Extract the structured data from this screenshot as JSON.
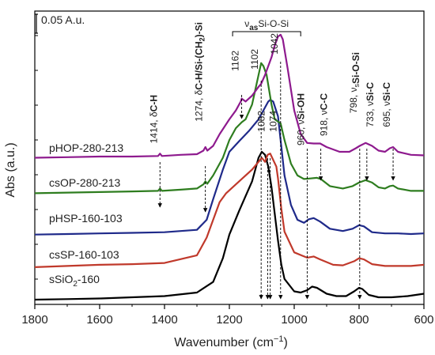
{
  "chart_data": {
    "type": "line",
    "xlabel": "Wavenumber (cm",
    "xlabel_sup": "−1",
    "xlabel_end": ")",
    "ylabel": "Abs (a.u.)",
    "xlim": [
      1800,
      600
    ],
    "x_reversed": true,
    "x_ticks": [
      1800,
      1600,
      1400,
      1200,
      1000,
      800,
      600
    ],
    "scale_bar_label": "0.05 A.u.",
    "series": [
      {
        "name": "sSiO",
        "name_sub": "2",
        "name_end": "-160",
        "color": "#000000",
        "offset": 0.0,
        "points": [
          [
            1800,
            0.0
          ],
          [
            1700,
            0.001
          ],
          [
            1600,
            0.002
          ],
          [
            1500,
            0.004
          ],
          [
            1400,
            0.006
          ],
          [
            1300,
            0.012
          ],
          [
            1250,
            0.03
          ],
          [
            1220,
            0.07
          ],
          [
            1200,
            0.11
          ],
          [
            1170,
            0.15
          ],
          [
            1150,
            0.175
          ],
          [
            1130,
            0.2
          ],
          [
            1110,
            0.24
          ],
          [
            1100,
            0.25
          ],
          [
            1090,
            0.245
          ],
          [
            1080,
            0.225
          ],
          [
            1070,
            0.19
          ],
          [
            1060,
            0.145
          ],
          [
            1050,
            0.1
          ],
          [
            1040,
            0.06
          ],
          [
            1030,
            0.035
          ],
          [
            1000,
            0.014
          ],
          [
            980,
            0.012
          ],
          [
            960,
            0.016
          ],
          [
            945,
            0.022
          ],
          [
            930,
            0.02
          ],
          [
            900,
            0.01
          ],
          [
            870,
            0.006
          ],
          [
            840,
            0.006
          ],
          [
            815,
            0.014
          ],
          [
            800,
            0.02
          ],
          [
            790,
            0.018
          ],
          [
            770,
            0.008
          ],
          [
            740,
            0.004
          ],
          [
            700,
            0.004
          ],
          [
            650,
            0.006
          ],
          [
            600,
            0.01
          ]
        ]
      },
      {
        "name": "csSP-160-103",
        "color": "#c0392b",
        "offset": 0.055,
        "points": [
          [
            1800,
            0.0
          ],
          [
            1700,
            0.002
          ],
          [
            1600,
            0.004
          ],
          [
            1500,
            0.005
          ],
          [
            1400,
            0.007
          ],
          [
            1300,
            0.02
          ],
          [
            1270,
            0.05
          ],
          [
            1250,
            0.08
          ],
          [
            1230,
            0.11
          ],
          [
            1210,
            0.125
          ],
          [
            1190,
            0.135
          ],
          [
            1160,
            0.15
          ],
          [
            1130,
            0.165
          ],
          [
            1110,
            0.178
          ],
          [
            1100,
            0.185
          ],
          [
            1090,
            0.178
          ],
          [
            1082,
            0.19
          ],
          [
            1074,
            0.192
          ],
          [
            1068,
            0.185
          ],
          [
            1055,
            0.17
          ],
          [
            1050,
            0.15
          ],
          [
            1040,
            0.1
          ],
          [
            1030,
            0.06
          ],
          [
            1000,
            0.025
          ],
          [
            960,
            0.016
          ],
          [
            940,
            0.018
          ],
          [
            920,
            0.013
          ],
          [
            880,
            0.004
          ],
          [
            850,
            0.003
          ],
          [
            815,
            0.01
          ],
          [
            800,
            0.015
          ],
          [
            785,
            0.013
          ],
          [
            760,
            0.005
          ],
          [
            720,
            0.002
          ],
          [
            680,
            0.002
          ],
          [
            640,
            0.002
          ],
          [
            600,
            0.004
          ]
        ]
      },
      {
        "name": "pHSP-160-103",
        "color": "#1f2a8a",
        "offset": 0.11,
        "points": [
          [
            1800,
            0.0
          ],
          [
            1700,
            0.001
          ],
          [
            1600,
            0.002
          ],
          [
            1500,
            0.003
          ],
          [
            1400,
            0.004
          ],
          [
            1300,
            0.008
          ],
          [
            1270,
            0.025
          ],
          [
            1250,
            0.06
          ],
          [
            1220,
            0.11
          ],
          [
            1200,
            0.14
          ],
          [
            1170,
            0.158
          ],
          [
            1140,
            0.175
          ],
          [
            1110,
            0.195
          ],
          [
            1090,
            0.215
          ],
          [
            1080,
            0.225
          ],
          [
            1074,
            0.228
          ],
          [
            1065,
            0.225
          ],
          [
            1050,
            0.2
          ],
          [
            1040,
            0.15
          ],
          [
            1030,
            0.1
          ],
          [
            1010,
            0.05
          ],
          [
            990,
            0.025
          ],
          [
            970,
            0.02
          ],
          [
            955,
            0.026
          ],
          [
            940,
            0.028
          ],
          [
            920,
            0.022
          ],
          [
            890,
            0.01
          ],
          [
            850,
            0.006
          ],
          [
            820,
            0.01
          ],
          [
            800,
            0.016
          ],
          [
            785,
            0.014
          ],
          [
            760,
            0.004
          ],
          [
            720,
            0.002
          ],
          [
            680,
            0.002
          ],
          [
            640,
            0.001
          ],
          [
            600,
            0.002
          ]
        ]
      },
      {
        "name": "csOP-280-213",
        "color": "#2e7d1f",
        "offset": 0.18,
        "points": [
          [
            1800,
            0.0
          ],
          [
            1700,
            0.001
          ],
          [
            1600,
            0.002
          ],
          [
            1500,
            0.003
          ],
          [
            1420,
            0.004
          ],
          [
            1414,
            0.008
          ],
          [
            1408,
            0.004
          ],
          [
            1350,
            0.006
          ],
          [
            1300,
            0.008
          ],
          [
            1280,
            0.015
          ],
          [
            1274,
            0.02
          ],
          [
            1268,
            0.016
          ],
          [
            1250,
            0.03
          ],
          [
            1220,
            0.06
          ],
          [
            1200,
            0.09
          ],
          [
            1180,
            0.11
          ],
          [
            1162,
            0.12
          ],
          [
            1150,
            0.125
          ],
          [
            1130,
            0.15
          ],
          [
            1110,
            0.2
          ],
          [
            1102,
            0.22
          ],
          [
            1095,
            0.215
          ],
          [
            1085,
            0.2
          ],
          [
            1070,
            0.15
          ],
          [
            1060,
            0.125
          ],
          [
            1042,
            0.118
          ],
          [
            1030,
            0.09
          ],
          [
            1010,
            0.05
          ],
          [
            990,
            0.03
          ],
          [
            970,
            0.024
          ],
          [
            950,
            0.025
          ],
          [
            930,
            0.026
          ],
          [
            918,
            0.024
          ],
          [
            890,
            0.012
          ],
          [
            850,
            0.008
          ],
          [
            820,
            0.012
          ],
          [
            800,
            0.018
          ],
          [
            780,
            0.022
          ],
          [
            760,
            0.018
          ],
          [
            740,
            0.01
          ],
          [
            720,
            0.008
          ],
          [
            705,
            0.012
          ],
          [
            695,
            0.013
          ],
          [
            680,
            0.008
          ],
          [
            640,
            0.004
          ],
          [
            600,
            0.004
          ]
        ]
      },
      {
        "name": "pHOP-280-213",
        "color": "#8e1a8e",
        "offset": 0.24,
        "points": [
          [
            1800,
            0.0
          ],
          [
            1700,
            0.001
          ],
          [
            1600,
            0.002
          ],
          [
            1500,
            0.002
          ],
          [
            1420,
            0.003
          ],
          [
            1414,
            0.007
          ],
          [
            1408,
            0.003
          ],
          [
            1350,
            0.005
          ],
          [
            1300,
            0.006
          ],
          [
            1280,
            0.012
          ],
          [
            1274,
            0.018
          ],
          [
            1268,
            0.012
          ],
          [
            1250,
            0.02
          ],
          [
            1230,
            0.04
          ],
          [
            1200,
            0.065
          ],
          [
            1180,
            0.08
          ],
          [
            1165,
            0.095
          ],
          [
            1162,
            0.1
          ],
          [
            1150,
            0.095
          ],
          [
            1130,
            0.105
          ],
          [
            1110,
            0.12
          ],
          [
            1102,
            0.125
          ],
          [
            1090,
            0.14
          ],
          [
            1070,
            0.17
          ],
          [
            1060,
            0.19
          ],
          [
            1050,
            0.205
          ],
          [
            1042,
            0.208
          ],
          [
            1035,
            0.2
          ],
          [
            1020,
            0.15
          ],
          [
            1000,
            0.08
          ],
          [
            980,
            0.04
          ],
          [
            960,
            0.025
          ],
          [
            940,
            0.024
          ],
          [
            920,
            0.024
          ],
          [
            900,
            0.018
          ],
          [
            860,
            0.01
          ],
          [
            830,
            0.01
          ],
          [
            810,
            0.016
          ],
          [
            798,
            0.02
          ],
          [
            780,
            0.025
          ],
          [
            760,
            0.02
          ],
          [
            740,
            0.012
          ],
          [
            720,
            0.01
          ],
          [
            705,
            0.016
          ],
          [
            695,
            0.018
          ],
          [
            680,
            0.01
          ],
          [
            640,
            0.005
          ],
          [
            600,
            0.004
          ]
        ]
      }
    ],
    "annotations": [
      {
        "text": "1414, δ",
        "bold": "C-H",
        "x": 1414,
        "arrow_y": 0.265
      },
      {
        "text": "1274, δ",
        "bold": "C-H/Si-(CH",
        "bold_sub": "2",
        "bold_end": ")-Si",
        "x": 1274,
        "arrow_y": 0.268
      },
      {
        "text": "1162",
        "x": 1162,
        "arrow_y": 0.345
      },
      {
        "text": "1102",
        "x": 1102,
        "arrow_y": 0.0
      },
      {
        "text": "1042",
        "x": 1042,
        "arrow_y": 0.0
      },
      {
        "text": "1082",
        "x": 1082,
        "arrow_y": 0.0
      },
      {
        "text": "1074",
        "x": 1074,
        "arrow_y": 0.0
      },
      {
        "text": "960, ν",
        "bold": "Si-OH",
        "x": 960,
        "arrow_y": 0.0
      },
      {
        "text": "918, ν",
        "bold": "C-C",
        "x": 918,
        "arrow_y": 0.205
      },
      {
        "text": "798, ν",
        "sub": "s",
        "bold": "Si-O-Si",
        "x": 798,
        "arrow_y": 0.0
      },
      {
        "text": "733, ν",
        "bold": "Si-C",
        "x": 776,
        "arrow_y": 0.205
      },
      {
        "text": "695, ν",
        "bold": "Si-C",
        "x": 695,
        "arrow_y": 0.205
      }
    ],
    "bracket": {
      "label_prefix": "ν",
      "label_sub": "as",
      "label_main": "Si-O-Si",
      "x_start": 1190,
      "x_end": 980
    }
  }
}
